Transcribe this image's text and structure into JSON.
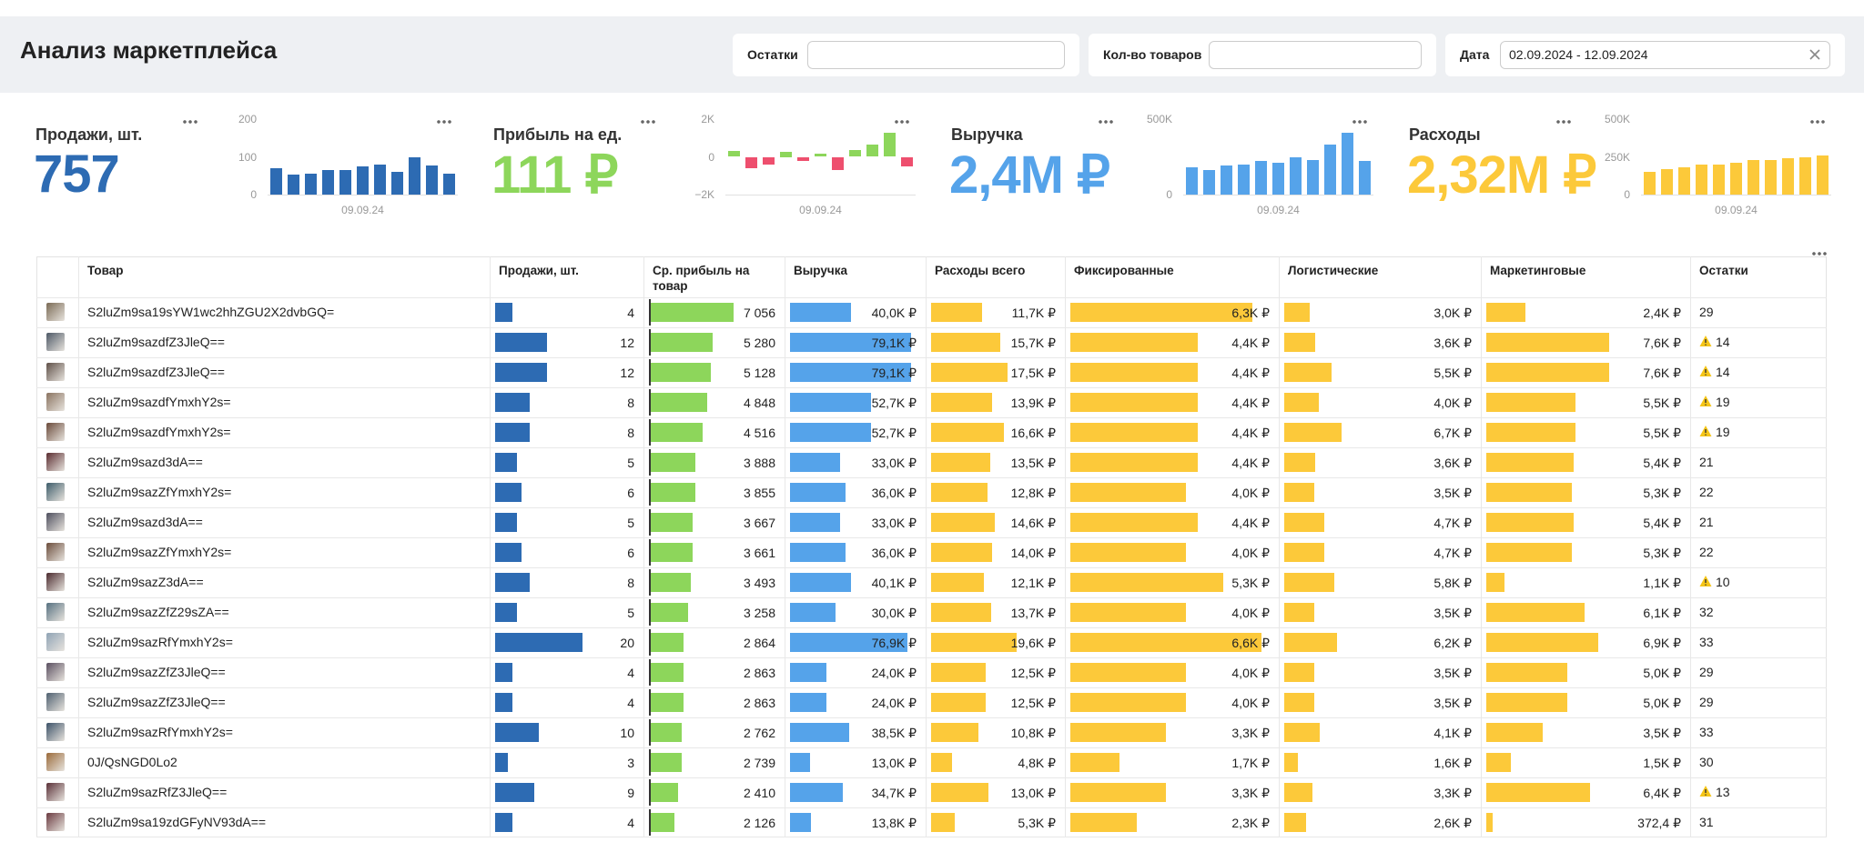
{
  "header": {
    "title": "Анализ маркетплейса",
    "filters": [
      {
        "label": "Остатки"
      },
      {
        "label": "Кол-во товаров"
      },
      {
        "label": "Дата",
        "value": "02.09.2024 - 12.09.2024"
      }
    ]
  },
  "kpis": [
    {
      "title": "Продажи, шт.",
      "value": "757",
      "color": "#2d6bb3",
      "chart": {
        "type": "bar",
        "values": [
          70,
          52,
          55,
          65,
          66,
          75,
          80,
          60,
          100,
          78,
          56
        ],
        "ylim": [
          0,
          200
        ],
        "yticks": [
          0,
          100,
          200
        ],
        "x_label": "09.09.24"
      }
    },
    {
      "title": "Прибыль на ед.",
      "value": "111 ₽",
      "color": "#8dd65b",
      "chart": {
        "type": "bar",
        "values": [
          300,
          -600,
          -400,
          250,
          -200,
          150,
          -700,
          350,
          650,
          1300,
          -500
        ],
        "negative_color": "#ee4f6e",
        "ylim": [
          -2000,
          2000
        ],
        "yticks": [
          {
            "value": -2000,
            "label": "−2K"
          },
          0,
          {
            "value": 2000,
            "label": "2K"
          }
        ],
        "x_label": "09.09.24"
      }
    },
    {
      "title": "Выручка",
      "value": "2,4M ₽",
      "color": "#55a3ea",
      "chart": {
        "type": "bar",
        "values": [
          180000,
          160000,
          190000,
          200000,
          220000,
          210000,
          250000,
          230000,
          330000,
          410000,
          220000
        ],
        "ylim": [
          0,
          500000
        ],
        "yticks": [
          0,
          {
            "value": 500000,
            "label": "500K"
          }
        ],
        "x_label": "09.09.24"
      }
    },
    {
      "title": "Расходы",
      "value": "2,32M ₽",
      "color": "#fcc93a",
      "chart": {
        "type": "bar",
        "values": [
          150000,
          170000,
          180000,
          200000,
          200000,
          210000,
          230000,
          230000,
          240000,
          250000,
          260000
        ],
        "ylim": [
          0,
          500000
        ],
        "yticks": [
          0,
          {
            "value": 250000,
            "label": "250K"
          },
          {
            "value": 500000,
            "label": "500K"
          }
        ],
        "x_label": "09.09.24"
      }
    }
  ],
  "table": {
    "columns": [
      {
        "header": "Товар",
        "values": [
          "S2luZm9sa19sYW1wc2hhZGU2X2dvbGQ=",
          "S2luZm9sazdfZ3JleQ==",
          "S2luZm9sazdfZ3JleQ==",
          "S2luZm9sazdfYmxhY2s=",
          "S2luZm9sazdfYmxhY2s=",
          "S2luZm9sazd3dA==",
          "S2luZm9sazZfYmxhY2s=",
          "S2luZm9sazd3dA==",
          "S2luZm9sazZfYmxhY2s=",
          "S2luZm9sazZ3dA==",
          "S2luZm9sazZfZ29sZA==",
          "S2luZm9sazRfYmxhY2s=",
          "S2luZm9sazZfZ3JleQ==",
          "S2luZm9sazZfZ3JleQ==",
          "S2luZm9sazRfYmxhY2s=",
          "0J/QsNGD0Lo2",
          "S2luZm9sazRfZ3JleQ==",
          "S2luZm9sa19zdGFyNV93dA=="
        ]
      },
      {
        "header": "Продажи, шт.",
        "color": "#2d6bb3",
        "values": [
          4,
          12,
          12,
          8,
          8,
          5,
          6,
          5,
          6,
          8,
          5,
          20,
          4,
          4,
          10,
          3,
          9,
          4
        ]
      },
      {
        "header": "Ср. прибыль на товар",
        "color": "#8dd65b",
        "zero_line": true,
        "values": [
          7056,
          5280,
          5128,
          4848,
          4516,
          3888,
          3855,
          3667,
          3661,
          3493,
          3258,
          2864,
          2863,
          2863,
          2762,
          2739,
          2410,
          2126
        ],
        "value_labels": [
          "7 056",
          "5 280",
          "5 128",
          "4 848",
          "4 516",
          "3 888",
          "3 855",
          "3 667",
          "3 661",
          "3 493",
          "3 258",
          "2 864",
          "2 863",
          "2 863",
          "2 762",
          "2 739",
          "2 410",
          "2 126"
        ]
      },
      {
        "header": "Выручка",
        "color": "#55a3ea",
        "values": [
          40000,
          79100,
          79100,
          52700,
          52700,
          33000,
          36000,
          33000,
          36000,
          40100,
          30000,
          76900,
          24000,
          24000,
          38500,
          13000,
          34700,
          13800
        ],
        "value_labels": [
          "40,0K ₽",
          "79,1K ₽",
          "79,1K ₽",
          "52,7K ₽",
          "52,7K ₽",
          "33,0K ₽",
          "36,0K ₽",
          "33,0K ₽",
          "36,0K ₽",
          "40,1K ₽",
          "30,0K ₽",
          "76,9K ₽",
          "24,0K ₽",
          "24,0K ₽",
          "38,5K ₽",
          "13,0K ₽",
          "34,7K ₽",
          "13,8K ₽"
        ]
      },
      {
        "header": "Расходы всего",
        "color": "#fcc93a",
        "values": [
          11700,
          15700,
          17500,
          13900,
          16600,
          13500,
          12800,
          14600,
          14000,
          12100,
          13700,
          19600,
          12500,
          12500,
          10800,
          4800,
          13000,
          5300
        ],
        "value_labels": [
          "11,7K ₽",
          "15,7K ₽",
          "17,5K ₽",
          "13,9K ₽",
          "16,6K ₽",
          "13,5K ₽",
          "12,8K ₽",
          "14,6K ₽",
          "14,0K ₽",
          "12,1K ₽",
          "13,7K ₽",
          "19,6K ₽",
          "12,5K ₽",
          "12,5K ₽",
          "10,8K ₽",
          "4,8K ₽",
          "13,0K ₽",
          "5,3K ₽"
        ]
      },
      {
        "header": "Фиксированные",
        "color": "#fcc93a",
        "values": [
          6300,
          4400,
          4400,
          4400,
          4400,
          4400,
          4000,
          4400,
          4000,
          5300,
          4000,
          6600,
          4000,
          4000,
          3300,
          1700,
          3300,
          2300
        ],
        "value_labels": [
          "6,3K ₽",
          "4,4K ₽",
          "4,4K ₽",
          "4,4K ₽",
          "4,4K ₽",
          "4,4K ₽",
          "4,0K ₽",
          "4,4K ₽",
          "4,0K ₽",
          "5,3K ₽",
          "4,0K ₽",
          "6,6K ₽",
          "4,0K ₽",
          "4,0K ₽",
          "3,3K ₽",
          "1,7K ₽",
          "3,3K ₽",
          "2,3K ₽"
        ]
      },
      {
        "header": "Логистические",
        "color": "#fcc93a",
        "values": [
          3000,
          3600,
          5500,
          4000,
          6700,
          3600,
          3500,
          4700,
          4700,
          5800,
          3500,
          6200,
          3500,
          3500,
          4100,
          1600,
          3300,
          2600
        ],
        "value_labels": [
          "3,0K ₽",
          "3,6K ₽",
          "5,5K ₽",
          "4,0K ₽",
          "6,7K ₽",
          "3,6K ₽",
          "3,5K ₽",
          "4,7K ₽",
          "4,7K ₽",
          "5,8K ₽",
          "3,5K ₽",
          "6,2K ₽",
          "3,5K ₽",
          "3,5K ₽",
          "4,1K ₽",
          "1,6K ₽",
          "3,3K ₽",
          "2,6K ₽"
        ]
      },
      {
        "header": "Маркетинговые",
        "color": "#fcc93a",
        "values": [
          2400,
          7600,
          7600,
          5500,
          5500,
          5400,
          5300,
          5400,
          5300,
          1100,
          6100,
          6900,
          5000,
          5000,
          3500,
          1500,
          6400,
          372.4
        ],
        "value_labels": [
          "2,4K ₽",
          "7,6K ₽",
          "7,6K ₽",
          "5,5K ₽",
          "5,5K ₽",
          "5,4K ₽",
          "5,3K ₽",
          "5,4K ₽",
          "5,3K ₽",
          "1,1K ₽",
          "6,1K ₽",
          "6,9K ₽",
          "5,0K ₽",
          "5,0K ₽",
          "3,5K ₽",
          "1,5K ₽",
          "6,4K ₽",
          "372,4 ₽"
        ]
      },
      {
        "header": "Остатки",
        "values": [
          29,
          14,
          14,
          19,
          19,
          21,
          22,
          21,
          22,
          10,
          32,
          33,
          29,
          29,
          33,
          30,
          13,
          31
        ],
        "warning": [
          false,
          true,
          true,
          true,
          true,
          false,
          false,
          false,
          false,
          true,
          false,
          false,
          false,
          false,
          false,
          false,
          true,
          false
        ]
      }
    ]
  }
}
